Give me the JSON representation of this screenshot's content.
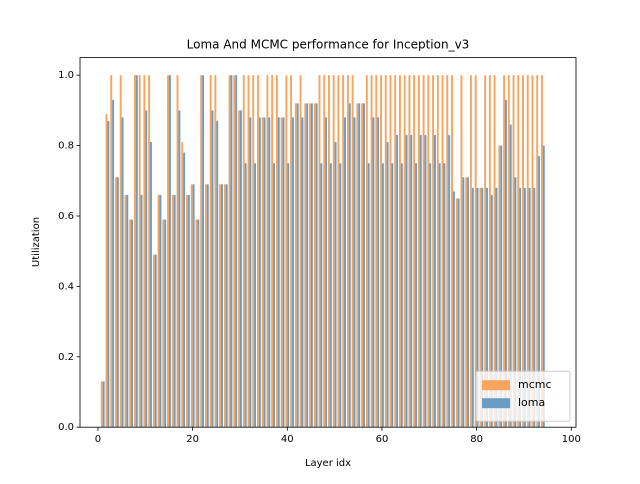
{
  "chart_data": {
    "type": "bar",
    "title": "Loma And MCMC performance for Inception_v3",
    "xlabel": "Layer idx",
    "ylabel": "Utilization",
    "x": [
      1,
      2,
      3,
      4,
      5,
      6,
      7,
      8,
      9,
      10,
      11,
      12,
      13,
      14,
      15,
      16,
      17,
      18,
      19,
      20,
      21,
      22,
      23,
      24,
      25,
      26,
      27,
      28,
      29,
      30,
      31,
      32,
      33,
      34,
      35,
      36,
      37,
      38,
      39,
      40,
      41,
      42,
      43,
      44,
      45,
      46,
      47,
      48,
      49,
      50,
      51,
      52,
      53,
      54,
      55,
      56,
      57,
      58,
      59,
      60,
      61,
      62,
      63,
      64,
      65,
      66,
      67,
      68,
      69,
      70,
      71,
      72,
      73,
      74,
      75,
      76,
      77,
      78,
      79,
      80,
      81,
      82,
      83,
      84,
      85,
      86,
      87,
      88,
      89,
      90,
      91,
      92,
      93,
      94
    ],
    "series": [
      {
        "name": "mcmc",
        "color": "#f7a45e",
        "values": [
          0.13,
          0.89,
          1,
          0.71,
          1,
          0.66,
          0.59,
          1,
          1,
          1,
          1,
          0.49,
          0.66,
          0.59,
          1,
          0.66,
          1,
          0.81,
          0.66,
          0.69,
          0.59,
          1,
          0.69,
          1,
          1,
          0.69,
          0.69,
          1,
          1,
          0.9,
          1,
          1,
          1,
          1,
          0.88,
          1,
          1,
          1,
          0.88,
          1,
          1,
          0.92,
          1,
          0.92,
          0.92,
          0.92,
          1,
          1,
          1,
          1,
          1,
          1,
          1,
          1,
          0.92,
          0.92,
          1,
          1,
          1,
          1,
          1,
          1,
          1,
          1,
          1,
          1,
          1,
          1,
          1,
          1,
          1,
          1,
          1,
          1,
          1,
          0.65,
          1,
          0.71,
          1,
          1,
          0.68,
          1,
          1,
          1,
          0.8,
          1,
          1,
          1,
          1,
          1,
          1,
          1,
          1,
          1
        ]
      },
      {
        "name": "loma",
        "color": "#6a9dc4",
        "values": [
          0.13,
          0.87,
          0.93,
          0.71,
          0.88,
          0.66,
          0.59,
          1,
          0.66,
          0.9,
          0.81,
          0.49,
          0.66,
          0.59,
          1,
          0.66,
          0.9,
          0.78,
          0.66,
          0.69,
          0.59,
          1,
          0.69,
          0.9,
          0.87,
          0.69,
          0.69,
          1,
          1,
          0.9,
          0.75,
          0.88,
          0.75,
          0.88,
          0.88,
          0.88,
          0.75,
          0.88,
          0.88,
          0.75,
          0.88,
          0.92,
          0.88,
          0.92,
          0.92,
          0.92,
          0.75,
          0.88,
          0.75,
          0.81,
          0.75,
          0.88,
          0.92,
          0.88,
          0.92,
          0.92,
          0.75,
          0.88,
          0.88,
          0.75,
          0.81,
          0.75,
          0.83,
          0.75,
          0.83,
          0.83,
          0.75,
          0.83,
          0.83,
          0.75,
          0.83,
          0.75,
          0.75,
          0.83,
          0.67,
          0.65,
          0.71,
          0.71,
          0.68,
          0.68,
          0.68,
          0.68,
          0.66,
          0.68,
          0.8,
          0.93,
          0.86,
          0.71,
          0.68,
          0.68,
          0.68,
          0.68,
          0.77,
          0.8
        ]
      }
    ],
    "xlim": [
      -3.8,
      101
    ],
    "ylim": [
      0,
      1.05
    ],
    "xticks": [
      0,
      20,
      40,
      60,
      80,
      100
    ],
    "yticks": [
      {
        "value": 0,
        "label": "0.0"
      },
      0.2,
      0.4,
      0.6,
      0.8,
      {
        "value": 1,
        "label": "1.0"
      }
    ],
    "legend": "lower right"
  }
}
